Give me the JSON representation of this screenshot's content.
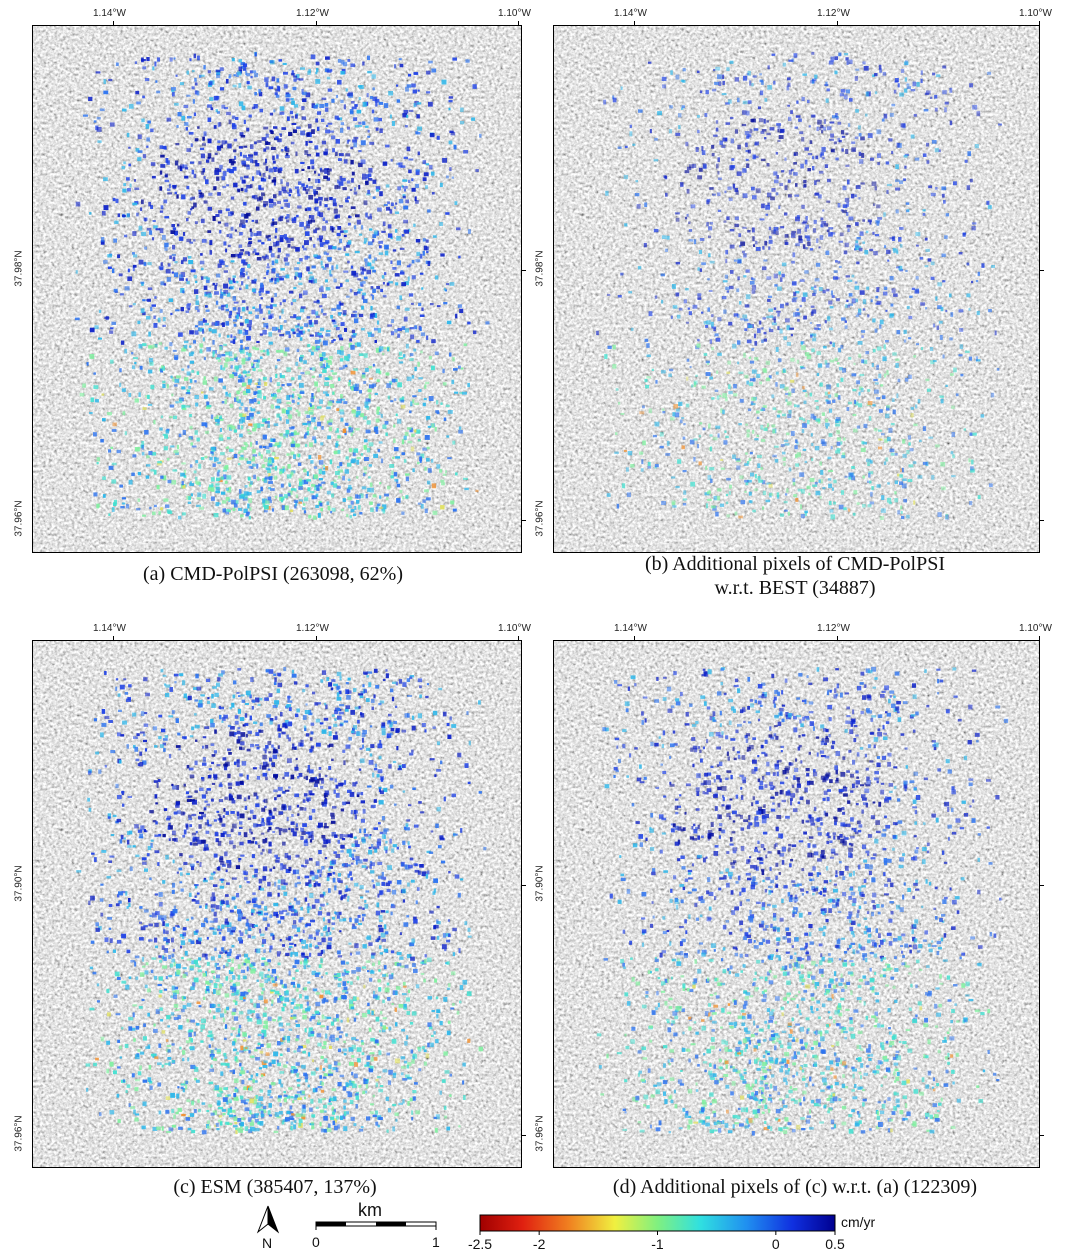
{
  "panels": [
    {
      "caption": [
        "(a) CMD-PolPSI (263098, 62%)"
      ],
      "x_ticks": [
        "1.14°W",
        "1.12°W",
        "1.10°W"
      ],
      "y_ticks": [
        "37.98°N",
        "37.96°N"
      ]
    },
    {
      "caption": [
        "(b) Additional pixels of CMD-PolPSI",
        "w.r.t. BEST (34887)"
      ],
      "x_ticks": [
        "1.14°W",
        "1.12°W",
        "1.10°W"
      ],
      "y_ticks": [
        "37.98°N",
        "37.96°N"
      ]
    },
    {
      "caption": [
        "(c) ESM (385407, 137%)"
      ],
      "x_ticks": [
        "1.14°W",
        "1.12°W",
        "1.10°W"
      ],
      "y_ticks": [
        "37.90°N",
        "37.96°N"
      ]
    },
    {
      "caption": [
        "(d) Additional pixels of (c) w.r.t. (a) (122309)"
      ],
      "x_ticks": [
        "1.14°W",
        "1.12°W",
        "1.10°W"
      ],
      "y_ticks": [
        "37.90°N",
        "37.96°N"
      ]
    }
  ],
  "legend": {
    "north": "N",
    "scale_unit": "km",
    "scale_ticks": [
      0,
      1
    ],
    "colorbar_unit": "cm/yr",
    "colorbar_range": [
      -2.5,
      0.5
    ],
    "colorbar_ticks": [
      -2.5,
      -2,
      -1,
      0,
      0.5
    ]
  }
}
